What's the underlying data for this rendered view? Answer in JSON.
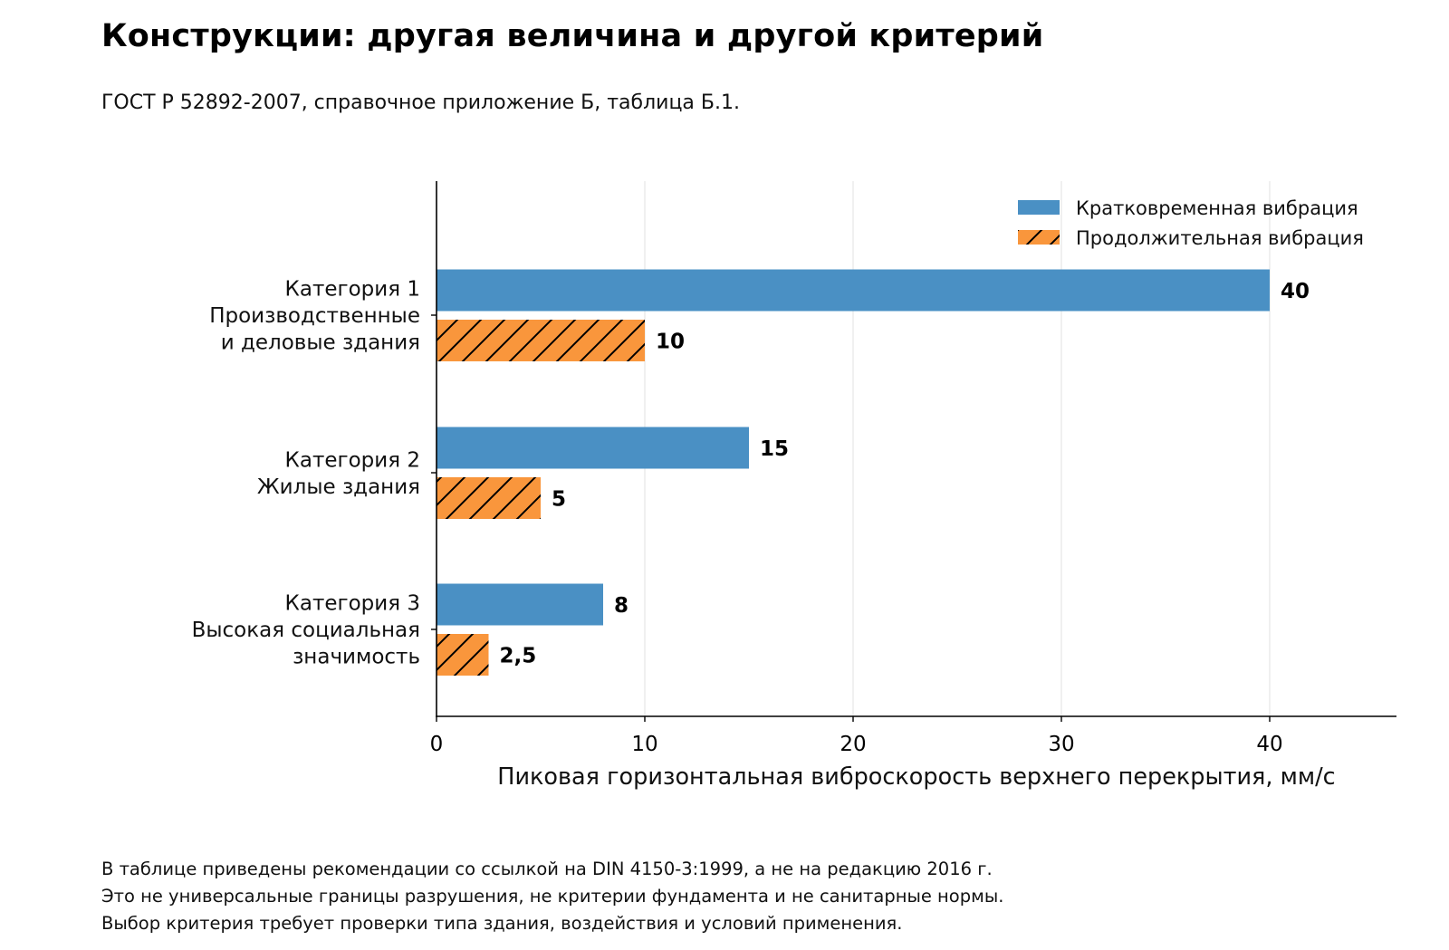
{
  "title": "Конструкции: другая величина и другой критерий",
  "subtitle": "ГОСТ Р 52892-2007, справочное приложение Б, таблица Б.1.",
  "notes": [
    "В таблице приведены рекомендации со ссылкой на DIN 4150-3:1999, а не на редакцию 2016 г.",
    "Это не универсальные границы разрушения, не критерии фундамента и не санитарные нормы.",
    "Выбор критерия требует проверки типа здания, воздействия и условий применения."
  ],
  "chart_data": {
    "type": "bar",
    "orientation": "horizontal",
    "categories": [
      [
        "Категория 1",
        "Производственные",
        "и деловые здания"
      ],
      [
        "Категория 2",
        "Жилые здания"
      ],
      [
        "Категория 3",
        "Высокая социальная",
        "значимость"
      ]
    ],
    "series": [
      {
        "name": "Кратковременная вибрация",
        "color": "#4a90c4",
        "pattern": "solid",
        "values": [
          40,
          15,
          8
        ],
        "labels": [
          "40",
          "15",
          "8"
        ]
      },
      {
        "name": "Продолжительная вибрация",
        "color": "#f9963c",
        "pattern": "diagonal-hatch",
        "values": [
          10,
          5,
          2.5
        ],
        "labels": [
          "10",
          "5",
          "2,5"
        ]
      }
    ],
    "xlabel": "Пиковая горизонтальная виброскорость верхнего перекрытия, мм/с",
    "xlim": [
      0,
      46
    ],
    "xticks": [
      0,
      10,
      20,
      30,
      40
    ],
    "xtick_labels": [
      "0",
      "10",
      "20",
      "30",
      "40"
    ],
    "grid": "vertical",
    "legend": "top-right"
  }
}
